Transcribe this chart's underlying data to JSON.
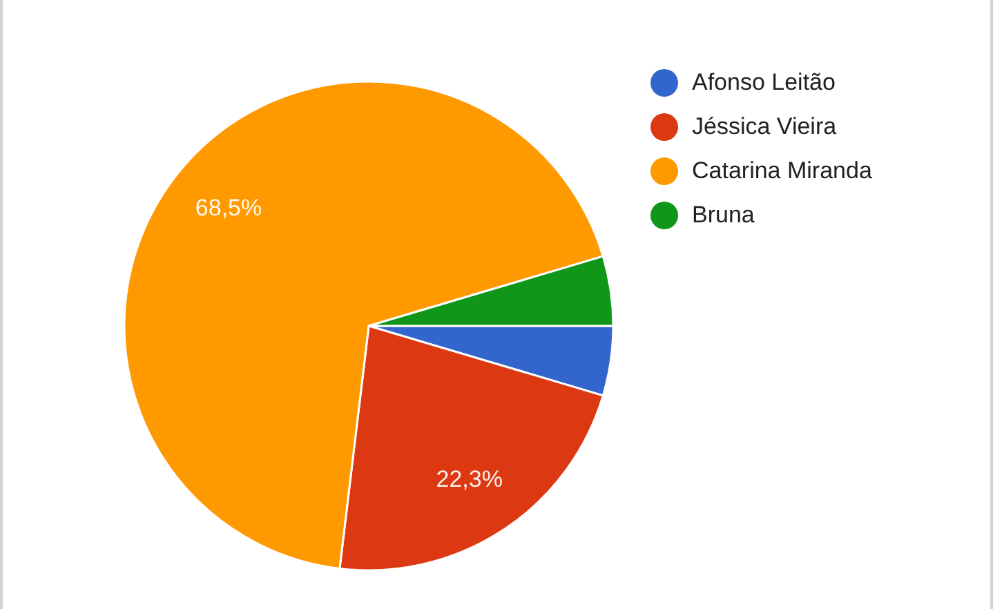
{
  "chart_data": {
    "type": "pie",
    "categories": [
      "Afonso Leitão",
      "Jéssica Vieira",
      "Catarina Miranda",
      "Bruna"
    ],
    "values": [
      4.6,
      22.3,
      68.5,
      4.6
    ],
    "colors": [
      "#3366cc",
      "#dc3912",
      "#ff9900",
      "#109618"
    ],
    "value_labels": [
      null,
      "22,3%",
      "68,5%",
      null
    ],
    "legend": "top right"
  }
}
